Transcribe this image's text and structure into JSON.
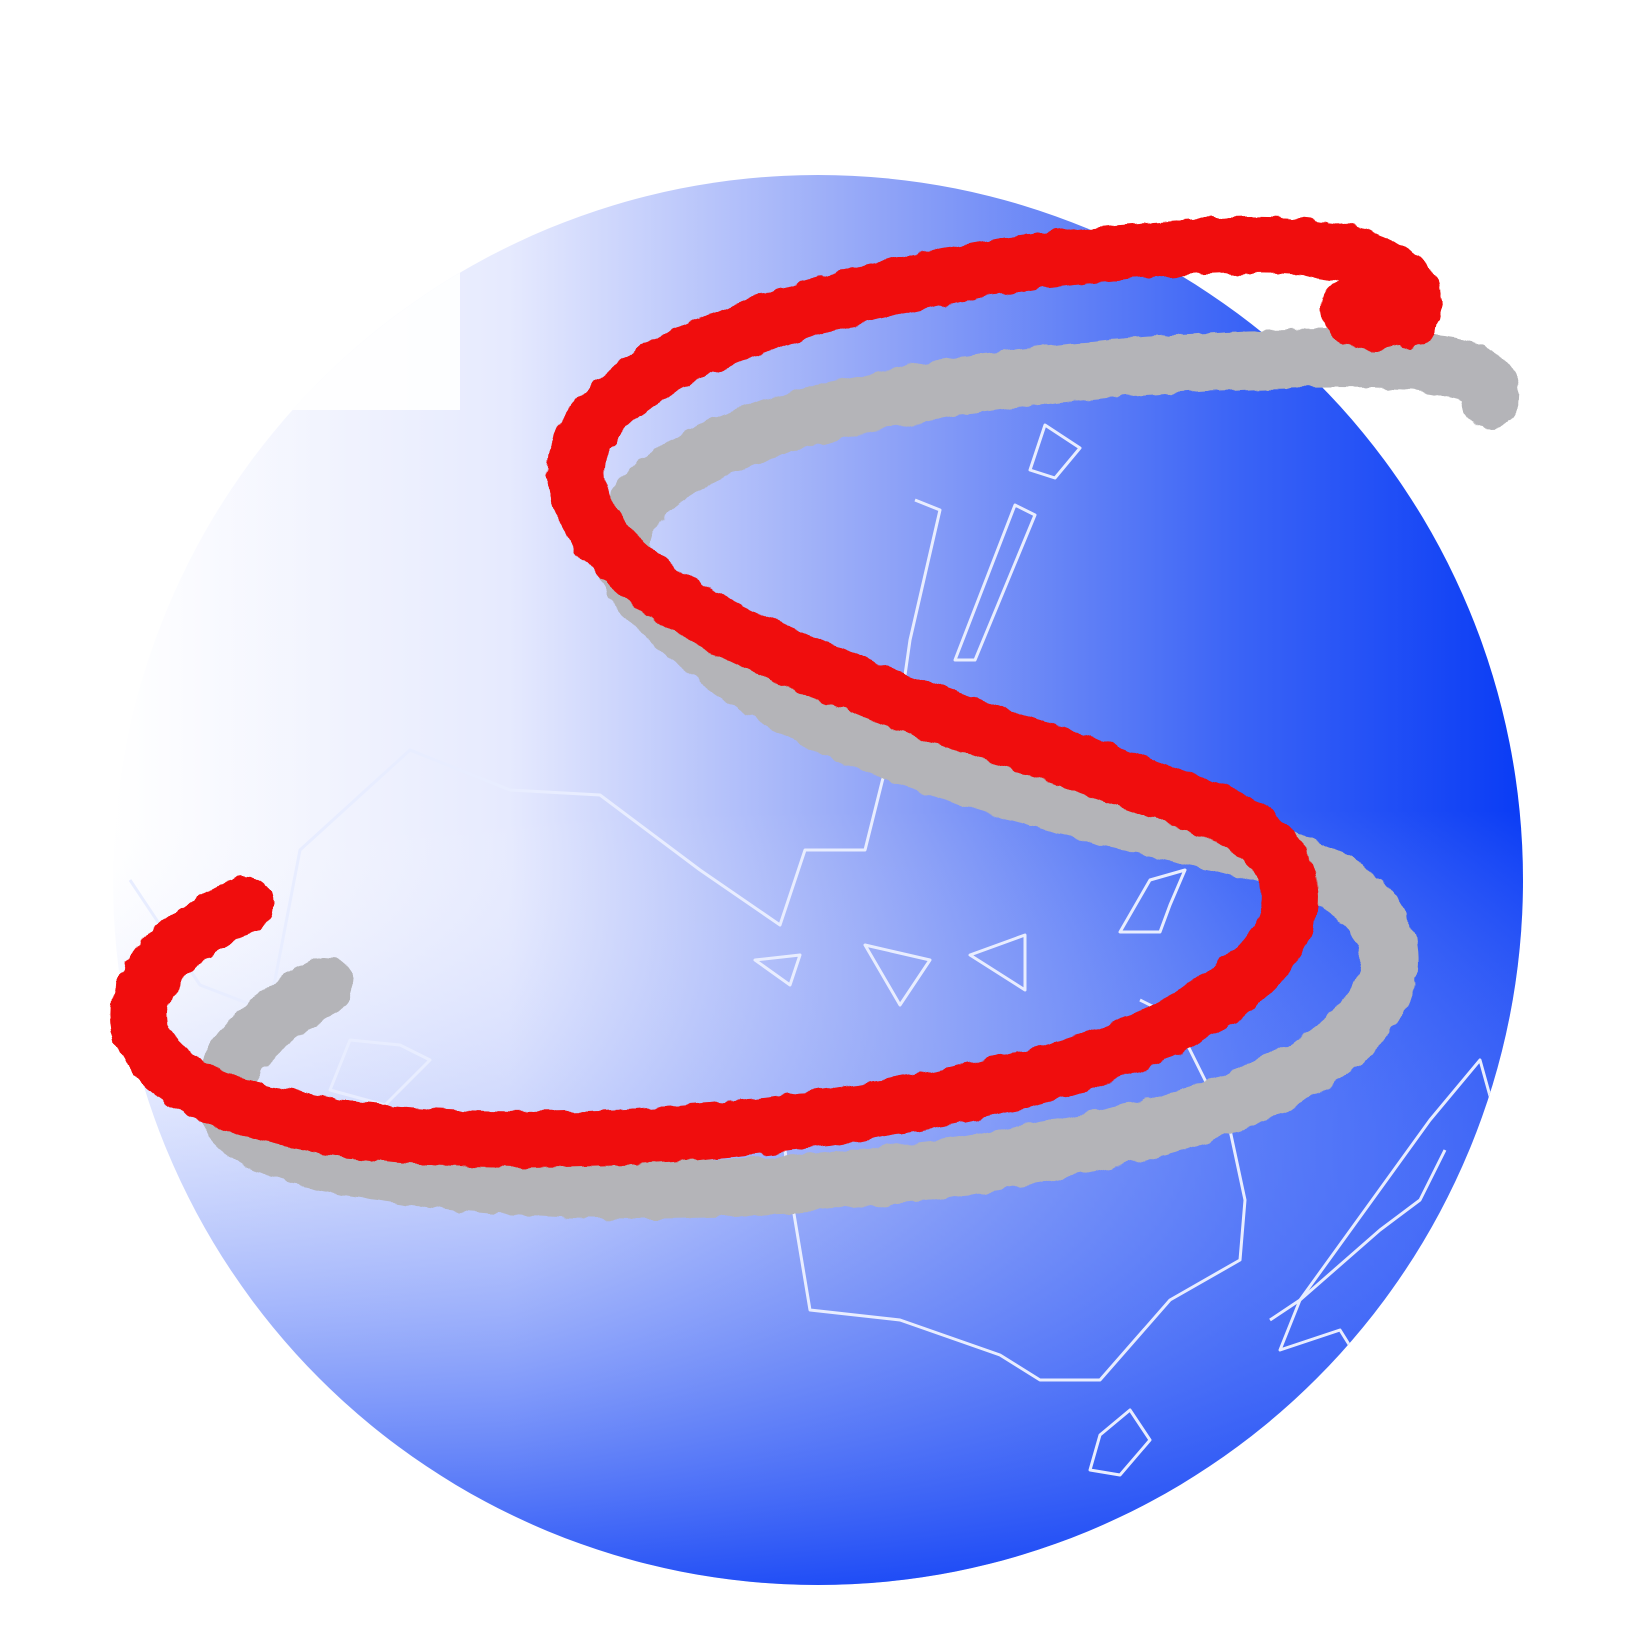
{
  "logo": {
    "description_icon": "globe-s-logo-icon",
    "colors": {
      "background": "#ffffff",
      "globe_light": "#ffffff",
      "globe_mid": "#8fa5f5",
      "globe_dark": "#0a3cf5",
      "outline": "#e6ecff",
      "swirl_main": "#f00808",
      "swirl_shadow": "#b4b4b8"
    }
  }
}
